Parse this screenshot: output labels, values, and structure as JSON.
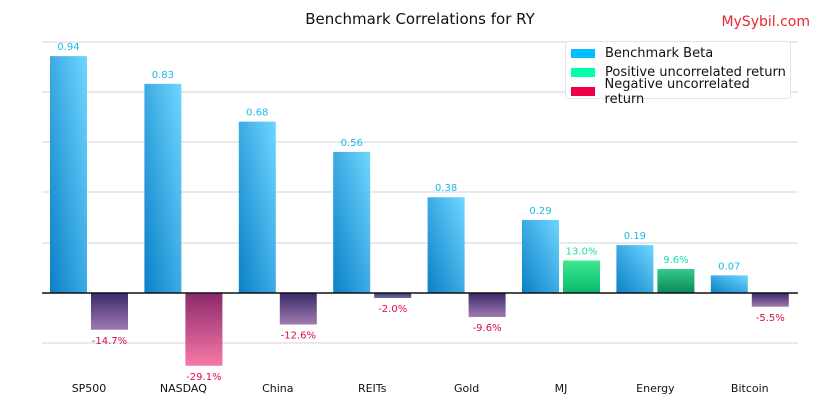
{
  "title": "Benchmark Correlations for RY",
  "brand": "MySybil.com",
  "colors": {
    "beta": "#00bfff",
    "positive": "#00ffaa",
    "negative": "#ee0044"
  },
  "legend": [
    {
      "label": "Benchmark Beta",
      "color": "#00bfff"
    },
    {
      "label": "Positive uncorrelated return",
      "color": "#00ffaa"
    },
    {
      "label": "Negative uncorrelated return",
      "color": "#ee0044"
    }
  ],
  "chart_data": {
    "type": "bar",
    "title": "Benchmark Correlations for RY",
    "categories": [
      "SP500",
      "NASDAQ",
      "China",
      "REITs",
      "Gold",
      "MJ",
      "Energy",
      "Bitcoin"
    ],
    "series": [
      {
        "name": "Benchmark Beta",
        "values": [
          0.94,
          0.83,
          0.68,
          0.56,
          0.38,
          0.29,
          0.19,
          0.07
        ],
        "labels": [
          "0.94",
          "0.83",
          "0.68",
          "0.56",
          "0.38",
          "0.29",
          "0.19",
          "0.07"
        ]
      },
      {
        "name": "Uncorrelated return",
        "values": [
          -14.7,
          -29.1,
          -12.6,
          -2.0,
          -9.6,
          13.0,
          9.6,
          -5.5
        ],
        "labels": [
          "-14.7%",
          "-29.1%",
          "-12.6%",
          "-2.0%",
          "-9.6%",
          "13.0%",
          "9.6%",
          "-5.5%"
        ]
      }
    ],
    "legend_position": "top-right",
    "grid": true
  }
}
